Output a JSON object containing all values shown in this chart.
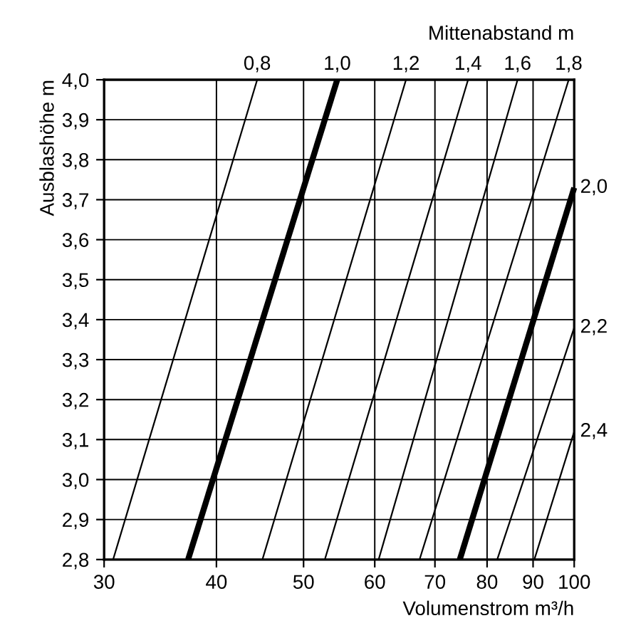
{
  "chart_data": {
    "type": "line",
    "xlabel": "Volumenstrom m³/h",
    "ylabel": "Ausblashöhe m",
    "x2label": "Mittenabstand m",
    "log": "x",
    "grid": true,
    "legend": false,
    "marker": "none",
    "line_style": "solid",
    "xlim": [
      30,
      100
    ],
    "xticks": [
      30,
      40,
      50,
      60,
      70,
      80,
      90,
      100
    ],
    "ylim": [
      2.8,
      4.0
    ],
    "yticks": [
      {
        "value": 2.8,
        "label": "2,8"
      },
      {
        "value": 2.9,
        "label": "2,9"
      },
      {
        "value": 3.0,
        "label": "3,0"
      },
      {
        "value": 3.1,
        "label": "3,1"
      },
      {
        "value": 3.2,
        "label": "3,2"
      },
      {
        "value": 3.3,
        "label": "3,3"
      },
      {
        "value": 3.4,
        "label": "3,4"
      },
      {
        "value": 3.5,
        "label": "3,5"
      },
      {
        "value": 3.6,
        "label": "3,6"
      },
      {
        "value": 3.7,
        "label": "3,7"
      },
      {
        "value": 3.8,
        "label": "3,8"
      },
      {
        "value": 3.9,
        "label": "3,9"
      },
      {
        "value": 4.0,
        "label": "4,0"
      }
    ],
    "series": [
      {
        "name": "0,8",
        "color": "#000000",
        "x": [
          30.7,
          44.4
        ],
        "values": [
          2.8,
          4.0
        ]
      },
      {
        "name": "1,0",
        "color": "#000000",
        "x": [
          37.2,
          54.5
        ],
        "values": [
          2.8,
          4.0
        ]
      },
      {
        "name": "1,2",
        "color": "#000000",
        "x": [
          45.0,
          65.0
        ],
        "values": [
          2.8,
          4.0
        ]
      },
      {
        "name": "1,4",
        "color": "#000000",
        "x": [
          52.8,
          76.2
        ],
        "values": [
          2.8,
          4.0
        ]
      },
      {
        "name": "1,6",
        "color": "#000000",
        "x": [
          60.6,
          86.5
        ],
        "values": [
          2.8,
          4.0
        ]
      },
      {
        "name": "1,8",
        "color": "#000000",
        "x": [
          67.3,
          98.6
        ],
        "values": [
          2.8,
          4.0
        ]
      },
      {
        "name": "2,0",
        "color": "#000000",
        "x": [
          74.6,
          100
        ],
        "values": [
          2.8,
          3.73
        ]
      },
      {
        "name": "2,2",
        "color": "#000000",
        "x": [
          82.1,
          100
        ],
        "values": [
          2.8,
          3.38
        ]
      },
      {
        "name": "2,4",
        "color": "#000000",
        "x": [
          90.3,
          100
        ],
        "values": [
          2.8,
          3.12
        ]
      }
    ]
  }
}
